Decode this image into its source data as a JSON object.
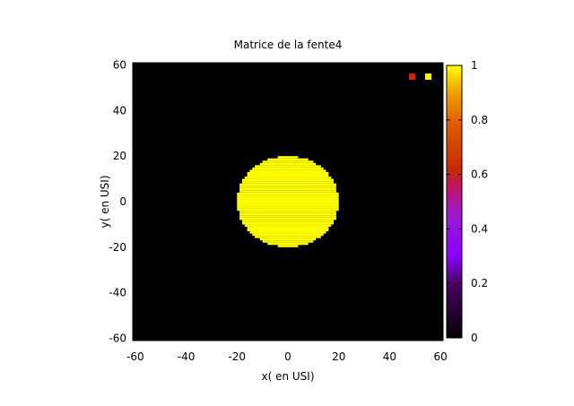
{
  "chart_data": {
    "type": "heatmap",
    "title": "Matrice de la fente4",
    "xlabel": "x( en USI)",
    "ylabel": "y( en USI)",
    "xlim": [
      -61,
      61
    ],
    "ylim": [
      -61,
      61
    ],
    "xticks": [
      -60,
      -40,
      -20,
      0,
      20,
      40,
      60
    ],
    "yticks": [
      -60,
      -40,
      -20,
      0,
      20,
      40,
      60
    ],
    "colorbar": {
      "range": [
        0,
        1
      ],
      "ticks": [
        0,
        0.2,
        0.4,
        0.6,
        0.8,
        1
      ],
      "tick_labels": [
        "0",
        "0.2",
        "0.4",
        "0.6",
        "0.8",
        "1"
      ],
      "palette": "black-purple-red-orange-yellow"
    },
    "background_value": 0,
    "shape": {
      "kind": "disc",
      "center": [
        0,
        0
      ],
      "radius": 20,
      "value": 1
    },
    "legend_markers": [
      {
        "color": "#c82a00"
      },
      {
        "color": "#ffff00"
      }
    ],
    "legend_position": "top-right",
    "grid": false,
    "colors": {
      "background": "#000000",
      "disc": "#ffff00"
    }
  }
}
